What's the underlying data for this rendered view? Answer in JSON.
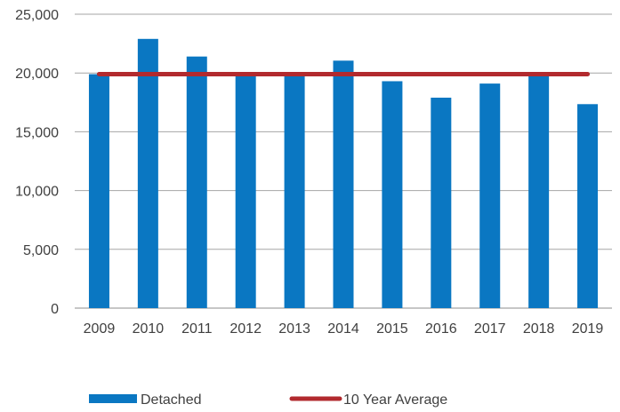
{
  "chart_data": {
    "type": "bar",
    "title": "",
    "xlabel": "",
    "ylabel": "",
    "categories": [
      "2009",
      "2010",
      "2011",
      "2012",
      "2013",
      "2014",
      "2015",
      "2016",
      "2017",
      "2018",
      "2019"
    ],
    "series": [
      {
        "name": "Detached",
        "type": "bar",
        "color": "#0a77c2",
        "values": [
          19900,
          22900,
          21400,
          20000,
          19950,
          21050,
          19300,
          17900,
          19100,
          19950,
          17350
        ]
      },
      {
        "name": "10 Year Average",
        "type": "line",
        "color": "#b22a2e",
        "values": [
          19900,
          19900,
          19900,
          19900,
          19900,
          19900,
          19900,
          19900,
          19900,
          19900,
          19900
        ]
      }
    ],
    "ylim": [
      0,
      25000
    ],
    "yticks": [
      0,
      5000,
      10000,
      15000,
      20000,
      25000
    ],
    "ytick_labels": [
      "0",
      "5,000",
      "10,000",
      "15,000",
      "20,000",
      "25,000"
    ],
    "grid": true,
    "legend": "bottom"
  }
}
